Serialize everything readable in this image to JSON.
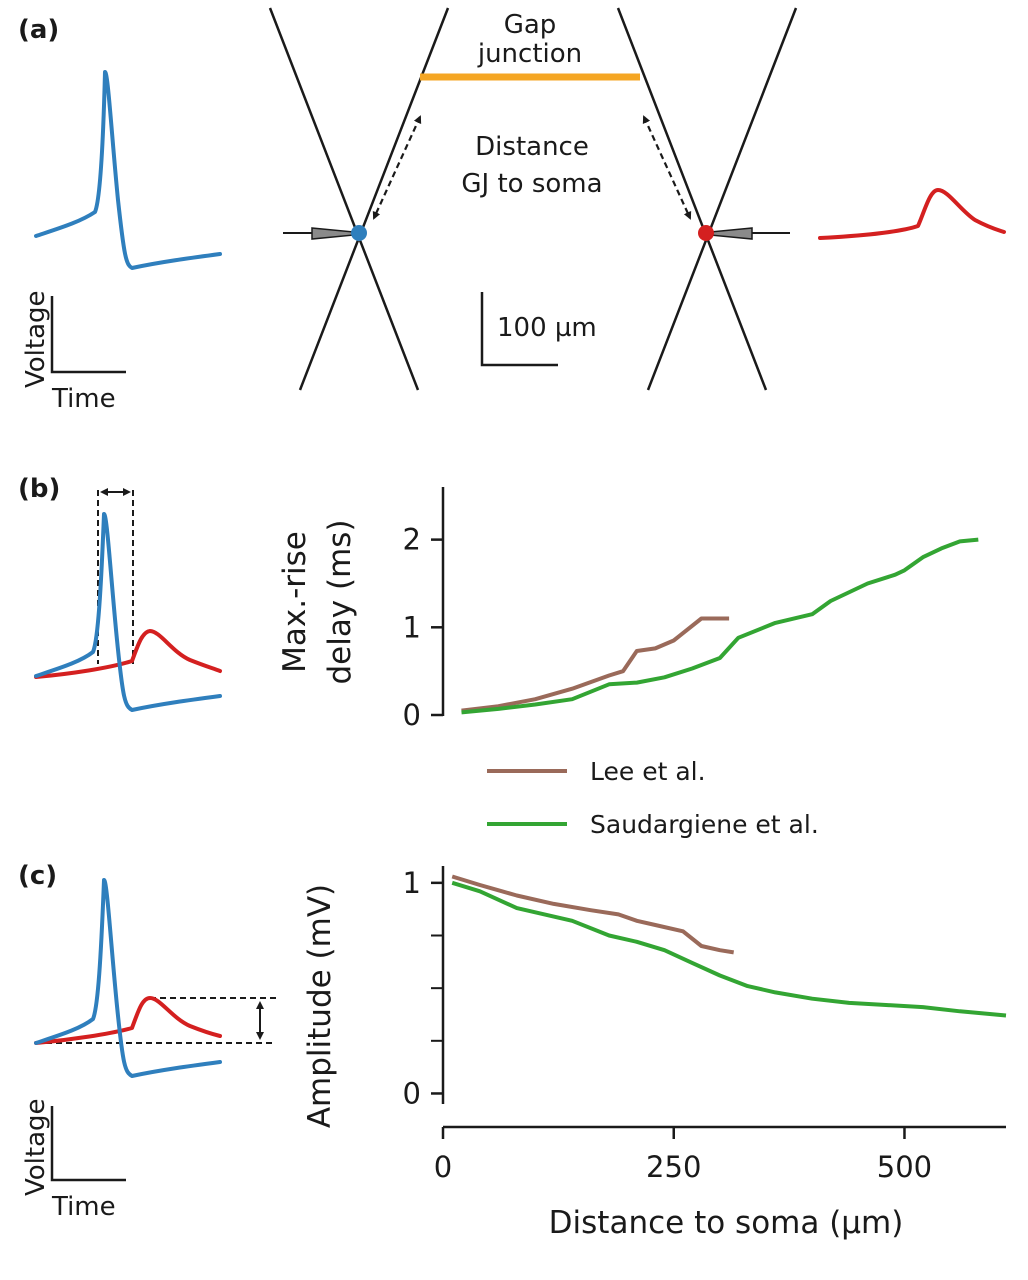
{
  "colors": {
    "blue": "#2f7fbd",
    "red": "#d42020",
    "orange": "#f5a623",
    "brown": "#9a6a5a",
    "green": "#33a533",
    "black": "#1a1a1a"
  },
  "panel_a": {
    "label": "(a)",
    "gap_junction_line1": "Gap",
    "gap_junction_line2": "junction",
    "distance_line1": "Distance",
    "distance_line2": "GJ to soma",
    "scale_bar": "100 µm",
    "voltage_label": "Voltage",
    "time_label": "Time"
  },
  "panel_b": {
    "label": "(b)"
  },
  "panel_c": {
    "label": "(c)",
    "voltage_label": "Voltage",
    "time_label": "Time"
  },
  "legend": [
    {
      "name": "Lee et al.",
      "color": "#9a6a5a"
    },
    {
      "name": "Saudargiene et al.",
      "color": "#33a533"
    }
  ],
  "chart_data": [
    {
      "type": "line",
      "ylabel_line1": "Max.-rise",
      "ylabel_line2": "delay (ms)",
      "xlim": [
        0,
        610
      ],
      "ylim": [
        0,
        2.6
      ],
      "yticks": [
        0,
        1,
        2
      ],
      "series": [
        {
          "name": "Lee et al.",
          "color": "#9a6a5a",
          "x": [
            20,
            60,
            100,
            140,
            180,
            195,
            210,
            230,
            250,
            280,
            310
          ],
          "y": [
            0.05,
            0.1,
            0.18,
            0.3,
            0.45,
            0.5,
            0.73,
            0.76,
            0.85,
            1.1,
            1.1
          ]
        },
        {
          "name": "Saudargiene et al.",
          "color": "#33a533",
          "x": [
            20,
            60,
            100,
            140,
            180,
            210,
            240,
            270,
            300,
            320,
            360,
            400,
            420,
            460,
            490,
            500,
            520,
            540,
            560,
            580
          ],
          "y": [
            0.03,
            0.07,
            0.12,
            0.18,
            0.35,
            0.37,
            0.43,
            0.53,
            0.65,
            0.88,
            1.05,
            1.15,
            1.3,
            1.5,
            1.6,
            1.65,
            1.8,
            1.9,
            1.98,
            2.0
          ]
        }
      ]
    },
    {
      "type": "line",
      "ylabel": "Amplitude (mV)",
      "xlabel": "Distance to soma (µm)",
      "xlim": [
        0,
        610
      ],
      "ylim": [
        -0.05,
        1.08
      ],
      "yticks": [
        0,
        1
      ],
      "xticks": [
        0,
        250,
        500
      ],
      "series": [
        {
          "name": "Lee et al.",
          "color": "#9a6a5a",
          "x": [
            10,
            40,
            80,
            120,
            160,
            190,
            210,
            230,
            260,
            280,
            300,
            315
          ],
          "y": [
            1.03,
            0.99,
            0.94,
            0.9,
            0.87,
            0.85,
            0.82,
            0.8,
            0.77,
            0.7,
            0.68,
            0.67
          ]
        },
        {
          "name": "Saudargiene et al.",
          "color": "#33a533",
          "x": [
            10,
            40,
            80,
            110,
            140,
            180,
            210,
            240,
            270,
            300,
            330,
            360,
            400,
            440,
            480,
            520,
            560,
            610
          ],
          "y": [
            1.0,
            0.96,
            0.88,
            0.85,
            0.82,
            0.75,
            0.72,
            0.68,
            0.62,
            0.56,
            0.51,
            0.48,
            0.45,
            0.43,
            0.42,
            0.41,
            0.39,
            0.37
          ]
        }
      ]
    }
  ]
}
